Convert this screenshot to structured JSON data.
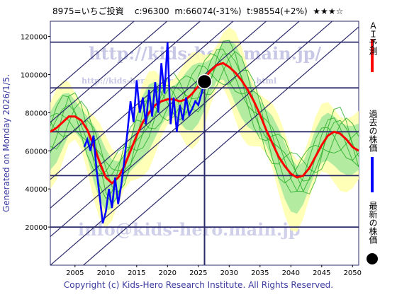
{
  "header": {
    "code_name": "8975=いちご投資",
    "current": "c:96300",
    "mid": "m:66074(-31%)",
    "target": "t:98554(+2%)",
    "rating": "★★★☆"
  },
  "generated_label": "Generated on Monday 2026/1/5.",
  "copyright": "Copyright (c) Kids-Hero Research Institute. All Rights Reserved.",
  "watermarks": {
    "top": "http://kids-hero.main.jp/",
    "middle": "http://kids-hero.main.jp/code/code8975.html",
    "bottom": "info@kids-hero.main.jp"
  },
  "legend": {
    "ai_forecast": "ＡＩ予測",
    "past_price": "過去の株価",
    "latest_price": "最新の株価"
  },
  "colors": {
    "forecast_line": "#ff0000",
    "past_price_line": "#0000ff",
    "band_fill": "#99e699",
    "band_outer": "#ffffb0",
    "grid_line": "#2b2b6b",
    "latest_marker": "#000000"
  },
  "chart_data": {
    "type": "line",
    "xlim": [
      2001,
      2051
    ],
    "ylim": [
      0,
      128000
    ],
    "x_ticks": [
      2005,
      2010,
      2015,
      2020,
      2025,
      2030,
      2035,
      2040,
      2045,
      2050
    ],
    "y_ticks": [
      20000,
      40000,
      60000,
      80000,
      100000,
      120000
    ],
    "horizontal_levels": [
      20000,
      47000,
      70000,
      93000,
      117000
    ],
    "latest_point": {
      "x": 2026.0,
      "y": 96300
    },
    "series": [
      {
        "name": "ＡＩ予測",
        "x": [
          2001,
          2002,
          2003,
          2004,
          2005,
          2006,
          2007,
          2008,
          2009,
          2010,
          2011,
          2012,
          2013,
          2014,
          2015,
          2016,
          2017,
          2018,
          2019,
          2020,
          2021,
          2022,
          2023,
          2024,
          2025,
          2026,
          2027,
          2028,
          2029,
          2030,
          2031,
          2032,
          2033,
          2034,
          2035,
          2036,
          2037,
          2038,
          2039,
          2040,
          2041,
          2042,
          2043,
          2044,
          2045,
          2046,
          2047,
          2048,
          2049,
          2050,
          2051
        ],
        "values": [
          70000,
          72000,
          75000,
          78000,
          78000,
          76000,
          71000,
          63000,
          54000,
          46000,
          43000,
          46000,
          52000,
          60000,
          68000,
          75000,
          80000,
          84000,
          86000,
          87000,
          87000,
          86000,
          87000,
          90000,
          94000,
          98000,
          102000,
          105000,
          106000,
          104000,
          101000,
          97000,
          92000,
          86000,
          79000,
          71000,
          64000,
          57000,
          52000,
          48000,
          46000,
          47000,
          51000,
          57000,
          63000,
          68000,
          70000,
          69000,
          66000,
          62000,
          60000
        ]
      },
      {
        "name": "過去の株価",
        "x": [
          2006.5,
          2007.0,
          2007.5,
          2008.0,
          2008.5,
          2009.0,
          2009.5,
          2010.0,
          2010.5,
          2011.0,
          2011.5,
          2012.0,
          2012.5,
          2013.0,
          2013.5,
          2014.0,
          2014.5,
          2015.0,
          2015.5,
          2016.0,
          2016.5,
          2017.0,
          2017.5,
          2018.0,
          2018.5,
          2019.0,
          2019.5,
          2020.0,
          2020.5,
          2021.0,
          2021.5,
          2022.0,
          2022.5,
          2023.0,
          2023.5,
          2024.0,
          2024.5,
          2025.0,
          2025.5,
          2026.0
        ],
        "values": [
          62000,
          66000,
          60000,
          68000,
          50000,
          36000,
          22000,
          28000,
          40000,
          30000,
          46000,
          32000,
          42000,
          55000,
          70000,
          86000,
          75000,
          97000,
          80000,
          88000,
          74000,
          92000,
          78000,
          96000,
          80000,
          106000,
          90000,
          117000,
          74000,
          88000,
          70000,
          84000,
          76000,
          88000,
          79000,
          82000,
          86000,
          84000,
          90000,
          96300
        ]
      }
    ]
  }
}
